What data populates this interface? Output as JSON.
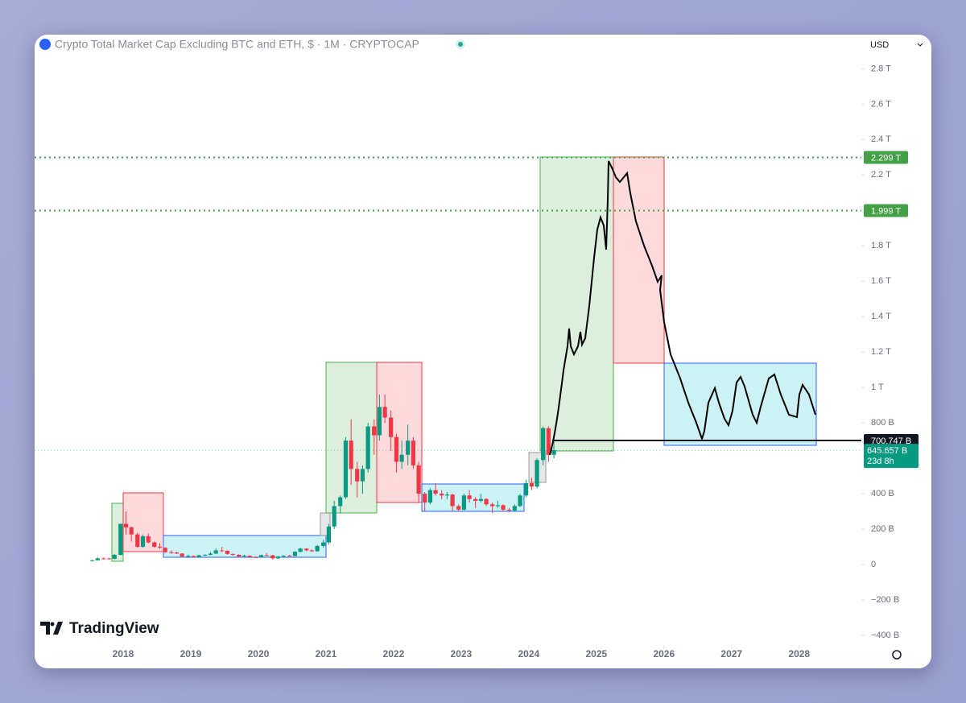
{
  "chart_data": {
    "type": "candlestick",
    "title": "Crypto Total Market Cap Excluding BTC and ETH, $ · 1M · CRYPTOCAP",
    "currency": "USD",
    "brand": "TradingView",
    "up_color": "#089981",
    "down_color": "#f23645",
    "x": [
      2017.5,
      2017.58,
      2017.67,
      2017.75,
      2017.83,
      2017.92,
      2018.0,
      2018.08,
      2018.17,
      2018.25,
      2018.33,
      2018.42,
      2018.5,
      2018.58,
      2018.67,
      2018.75,
      2018.83,
      2018.92,
      2019.0,
      2019.08,
      2019.17,
      2019.25,
      2019.33,
      2019.42,
      2019.5,
      2019.58,
      2019.67,
      2019.75,
      2019.83,
      2019.92,
      2020.0,
      2020.08,
      2020.17,
      2020.25,
      2020.33,
      2020.42,
      2020.5,
      2020.58,
      2020.67,
      2020.75,
      2020.83,
      2020.92,
      2021.0,
      2021.08,
      2021.17,
      2021.25,
      2021.33,
      2021.42,
      2021.5,
      2021.58,
      2021.67,
      2021.75,
      2021.83,
      2021.92,
      2022.0,
      2022.08,
      2022.17,
      2022.25,
      2022.33,
      2022.42,
      2022.5,
      2022.58,
      2022.67,
      2022.75,
      2022.83,
      2022.92,
      2023.0,
      2023.08,
      2023.17,
      2023.25,
      2023.33,
      2023.42,
      2023.5,
      2023.58,
      2023.67,
      2023.75,
      2023.83,
      2023.92,
      2024.0,
      2024.08,
      2024.17,
      2024.25,
      2024.33
    ],
    "open": [
      20,
      24,
      35,
      34,
      32,
      55,
      230,
      210,
      170,
      100,
      160,
      125,
      100,
      95,
      70,
      68,
      62,
      45,
      48,
      42,
      52,
      55,
      62,
      80,
      78,
      60,
      55,
      45,
      50,
      42,
      40,
      53,
      52,
      35,
      45,
      50,
      48,
      72,
      90,
      80,
      75,
      105,
      125,
      215,
      330,
      380,
      700,
      540,
      470,
      540,
      780,
      730,
      890,
      830,
      720,
      580,
      620,
      700,
      560,
      400,
      350,
      420,
      400,
      390,
      395,
      330,
      310,
      390,
      370,
      360,
      370,
      340,
      330,
      335,
      310,
      305,
      330,
      390,
      460,
      440,
      590,
      770,
      620
    ],
    "high": [
      25,
      40,
      40,
      38,
      60,
      230,
      300,
      215,
      180,
      170,
      175,
      130,
      120,
      97,
      80,
      72,
      64,
      55,
      50,
      55,
      58,
      70,
      90,
      100,
      80,
      62,
      58,
      55,
      52,
      45,
      55,
      65,
      54,
      48,
      52,
      55,
      75,
      95,
      92,
      85,
      110,
      140,
      230,
      360,
      390,
      720,
      820,
      580,
      560,
      800,
      820,
      960,
      960,
      870,
      740,
      700,
      790,
      720,
      580,
      410,
      430,
      460,
      420,
      410,
      400,
      340,
      400,
      420,
      380,
      400,
      375,
      350,
      360,
      340,
      320,
      340,
      400,
      480,
      490,
      600,
      780,
      780,
      700
    ],
    "low": [
      18,
      22,
      28,
      30,
      30,
      50,
      170,
      130,
      95,
      95,
      120,
      95,
      90,
      65,
      60,
      60,
      40,
      38,
      40,
      40,
      48,
      52,
      58,
      70,
      55,
      50,
      42,
      42,
      40,
      38,
      39,
      50,
      28,
      32,
      42,
      46,
      47,
      68,
      75,
      72,
      72,
      95,
      115,
      200,
      290,
      370,
      450,
      380,
      400,
      520,
      620,
      700,
      800,
      640,
      520,
      540,
      560,
      540,
      350,
      300,
      340,
      390,
      370,
      370,
      300,
      300,
      305,
      350,
      320,
      350,
      330,
      290,
      320,
      300,
      295,
      300,
      325,
      380,
      420,
      430,
      560,
      580,
      600
    ],
    "close": [
      24,
      35,
      34,
      32,
      55,
      230,
      210,
      170,
      100,
      160,
      125,
      100,
      95,
      70,
      68,
      62,
      45,
      48,
      42,
      52,
      55,
      62,
      80,
      78,
      60,
      55,
      45,
      50,
      42,
      40,
      53,
      52,
      35,
      45,
      50,
      48,
      72,
      90,
      80,
      75,
      105,
      125,
      215,
      330,
      380,
      700,
      540,
      470,
      540,
      780,
      730,
      890,
      830,
      720,
      580,
      620,
      700,
      560,
      400,
      350,
      420,
      400,
      390,
      395,
      330,
      310,
      390,
      370,
      360,
      370,
      340,
      330,
      335,
      310,
      305,
      330,
      390,
      460,
      440,
      590,
      770,
      620,
      646
    ],
    "xlim": [
      2016.69,
      2028.92
    ],
    "xticks": [
      2018,
      2019,
      2020,
      2021,
      2022,
      2023,
      2024,
      2025,
      2026,
      2027,
      2028
    ],
    "ylim": [
      -450,
      2870
    ],
    "yticks": [
      {
        "value": -400,
        "label": "−400 B"
      },
      {
        "value": -200,
        "label": "−200 B"
      },
      0,
      {
        "value": 200,
        "label": "200 B"
      },
      {
        "value": 400,
        "label": "400 B"
      },
      {
        "value": 800,
        "label": "800 B"
      },
      {
        "value": 1000,
        "label": "1 T"
      },
      {
        "value": 1200,
        "label": "1.2 T"
      },
      {
        "value": 1400,
        "label": "1.4 T"
      },
      {
        "value": 1600,
        "label": "1.6 T"
      },
      {
        "value": 1800,
        "label": "1.8 T"
      },
      {
        "value": 2200,
        "label": "2.2 T"
      },
      {
        "value": 2400,
        "label": "2.4 T"
      },
      {
        "value": 2600,
        "label": "2.6 T"
      },
      {
        "value": 2800,
        "label": "2.8 T"
      }
    ],
    "levels": [
      {
        "value": 2299,
        "label": "2.299 T",
        "color": "#43a047"
      },
      {
        "value": 1999,
        "label": "1.999 T",
        "color": "#43a047"
      }
    ],
    "drawn_line": {
      "value": 700.747,
      "label": "700.747 B",
      "color": "#131722"
    },
    "last_price": {
      "value": 645.657,
      "label": "645.657 B",
      "countdown": "23d 8h",
      "color": "#089981"
    }
  }
}
